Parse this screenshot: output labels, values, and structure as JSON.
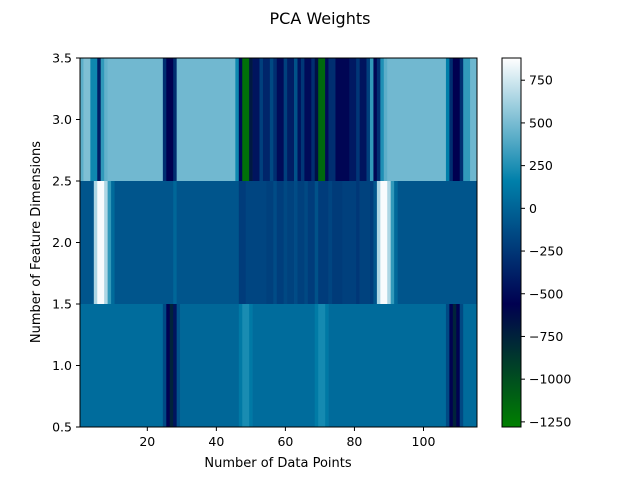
{
  "chart_data": {
    "type": "heatmap",
    "title": "PCA Weights",
    "xlabel": "Number of Data Points",
    "ylabel": "Number of Feature Dimensions",
    "xlim": [
      0.5,
      115.5
    ],
    "ylim": [
      0.5,
      3.5
    ],
    "x_ticks": [
      20,
      40,
      60,
      80,
      100
    ],
    "y_ticks": [
      0.5,
      1.0,
      1.5,
      2.0,
      2.5,
      3.0,
      3.5
    ],
    "x_tick_labels": [
      "20",
      "40",
      "60",
      "80",
      "100"
    ],
    "y_tick_labels": [
      "0.5",
      "1.0",
      "1.5",
      "2.0",
      "2.5",
      "3.0",
      "3.5"
    ],
    "rows": [
      1,
      2,
      3
    ],
    "colormap": "ocean",
    "colorbar": {
      "min": -1280,
      "max": 880,
      "ticks": [
        -1250,
        -1000,
        -750,
        -500,
        -250,
        0,
        250,
        500,
        750
      ],
      "tick_labels": [
        "−1250",
        "−1000",
        "−750",
        "−500",
        "−250",
        "0",
        "250",
        "500",
        "750"
      ]
    },
    "series": [
      {
        "row": 3,
        "segments": [
          {
            "from": 1,
            "to": 1,
            "value": 420
          },
          {
            "from": 2,
            "to": 3,
            "value": 520
          },
          {
            "from": 4,
            "to": 5,
            "value": 200
          },
          {
            "from": 6,
            "to": 6,
            "value": -400
          },
          {
            "from": 7,
            "to": 7,
            "value": 300
          },
          {
            "from": 8,
            "to": 8,
            "value": 440
          },
          {
            "from": 9,
            "to": 24,
            "value": 480
          },
          {
            "from": 25,
            "to": 25,
            "value": -300
          },
          {
            "from": 26,
            "to": 27,
            "value": -560
          },
          {
            "from": 28,
            "to": 28,
            "value": -300
          },
          {
            "from": 29,
            "to": 45,
            "value": 480
          },
          {
            "from": 46,
            "to": 46,
            "value": 200
          },
          {
            "from": 47,
            "to": 47,
            "value": -500
          },
          {
            "from": 48,
            "to": 49,
            "value": -1200
          },
          {
            "from": 50,
            "to": 50,
            "value": -700
          },
          {
            "from": 51,
            "to": 52,
            "value": -450
          },
          {
            "from": 53,
            "to": 53,
            "value": -200
          },
          {
            "from": 54,
            "to": 55,
            "value": -350
          },
          {
            "from": 56,
            "to": 56,
            "value": -150
          },
          {
            "from": 57,
            "to": 57,
            "value": -300
          },
          {
            "from": 58,
            "to": 59,
            "value": -500
          },
          {
            "from": 60,
            "to": 60,
            "value": -200
          },
          {
            "from": 61,
            "to": 62,
            "value": -400
          },
          {
            "from": 63,
            "to": 63,
            "value": -100
          },
          {
            "from": 64,
            "to": 64,
            "value": -450
          },
          {
            "from": 65,
            "to": 65,
            "value": -250
          },
          {
            "from": 66,
            "to": 67,
            "value": -500
          },
          {
            "from": 68,
            "to": 68,
            "value": -300
          },
          {
            "from": 69,
            "to": 69,
            "value": -650
          },
          {
            "from": 70,
            "to": 71,
            "value": -1150
          },
          {
            "from": 72,
            "to": 72,
            "value": -500
          },
          {
            "from": 73,
            "to": 74,
            "value": -300
          },
          {
            "from": 75,
            "to": 78,
            "value": -530
          },
          {
            "from": 79,
            "to": 80,
            "value": -420
          },
          {
            "from": 81,
            "to": 81,
            "value": -250
          },
          {
            "from": 82,
            "to": 83,
            "value": -450
          },
          {
            "from": 84,
            "to": 84,
            "value": -200
          },
          {
            "from": 85,
            "to": 85,
            "value": 300
          },
          {
            "from": 86,
            "to": 86,
            "value": -520
          },
          {
            "from": 87,
            "to": 87,
            "value": -300
          },
          {
            "from": 88,
            "to": 88,
            "value": 250
          },
          {
            "from": 89,
            "to": 89,
            "value": 420
          },
          {
            "from": 90,
            "to": 106,
            "value": 480
          },
          {
            "from": 107,
            "to": 107,
            "value": 150
          },
          {
            "from": 108,
            "to": 108,
            "value": -300
          },
          {
            "from": 109,
            "to": 110,
            "value": -560
          },
          {
            "from": 111,
            "to": 111,
            "value": -300
          },
          {
            "from": 112,
            "to": 113,
            "value": 300
          },
          {
            "from": 114,
            "to": 115,
            "value": 470
          }
        ]
      },
      {
        "row": 2,
        "segments": [
          {
            "from": 1,
            "to": 4,
            "value": -80
          },
          {
            "from": 5,
            "to": 5,
            "value": 650
          },
          {
            "from": 6,
            "to": 7,
            "value": 860
          },
          {
            "from": 8,
            "to": 8,
            "value": 650
          },
          {
            "from": 9,
            "to": 9,
            "value": 300
          },
          {
            "from": 10,
            "to": 10,
            "value": 40
          },
          {
            "from": 11,
            "to": 27,
            "value": -80
          },
          {
            "from": 28,
            "to": 28,
            "value": 20
          },
          {
            "from": 29,
            "to": 46,
            "value": -80
          },
          {
            "from": 47,
            "to": 48,
            "value": -220
          },
          {
            "from": 49,
            "to": 54,
            "value": -170
          },
          {
            "from": 55,
            "to": 56,
            "value": -200
          },
          {
            "from": 57,
            "to": 57,
            "value": -130
          },
          {
            "from": 58,
            "to": 59,
            "value": -210
          },
          {
            "from": 60,
            "to": 60,
            "value": -150
          },
          {
            "from": 61,
            "to": 62,
            "value": -190
          },
          {
            "from": 63,
            "to": 63,
            "value": -130
          },
          {
            "from": 64,
            "to": 65,
            "value": -200
          },
          {
            "from": 66,
            "to": 66,
            "value": -150
          },
          {
            "from": 67,
            "to": 68,
            "value": -220
          },
          {
            "from": 69,
            "to": 69,
            "value": -100
          },
          {
            "from": 70,
            "to": 72,
            "value": -220
          },
          {
            "from": 73,
            "to": 73,
            "value": -170
          },
          {
            "from": 74,
            "to": 76,
            "value": -230
          },
          {
            "from": 77,
            "to": 80,
            "value": -200
          },
          {
            "from": 81,
            "to": 81,
            "value": -250
          },
          {
            "from": 82,
            "to": 84,
            "value": -190
          },
          {
            "from": 85,
            "to": 85,
            "value": -220
          },
          {
            "from": 86,
            "to": 86,
            "value": -80
          },
          {
            "from": 87,
            "to": 87,
            "value": 650
          },
          {
            "from": 88,
            "to": 89,
            "value": 860
          },
          {
            "from": 90,
            "to": 90,
            "value": 650
          },
          {
            "from": 91,
            "to": 91,
            "value": 300
          },
          {
            "from": 92,
            "to": 92,
            "value": 30
          },
          {
            "from": 93,
            "to": 115,
            "value": -80
          }
        ]
      },
      {
        "row": 1,
        "segments": [
          {
            "from": 1,
            "to": 24,
            "value": 50
          },
          {
            "from": 25,
            "to": 25,
            "value": -150
          },
          {
            "from": 26,
            "to": 26,
            "value": -550
          },
          {
            "from": 27,
            "to": 27,
            "value": -760
          },
          {
            "from": 28,
            "to": 28,
            "value": -450
          },
          {
            "from": 29,
            "to": 29,
            "value": -100
          },
          {
            "from": 30,
            "to": 46,
            "value": 20
          },
          {
            "from": 47,
            "to": 47,
            "value": 120
          },
          {
            "from": 48,
            "to": 49,
            "value": 230
          },
          {
            "from": 50,
            "to": 50,
            "value": 120
          },
          {
            "from": 51,
            "to": 68,
            "value": 50
          },
          {
            "from": 69,
            "to": 69,
            "value": 130
          },
          {
            "from": 70,
            "to": 71,
            "value": 220
          },
          {
            "from": 72,
            "to": 72,
            "value": 120
          },
          {
            "from": 73,
            "to": 106,
            "value": 40
          },
          {
            "from": 107,
            "to": 107,
            "value": -150
          },
          {
            "from": 108,
            "to": 108,
            "value": -550
          },
          {
            "from": 109,
            "to": 109,
            "value": -760
          },
          {
            "from": 110,
            "to": 110,
            "value": -550
          },
          {
            "from": 111,
            "to": 111,
            "value": -150
          },
          {
            "from": 112,
            "to": 115,
            "value": 40
          }
        ]
      }
    ]
  }
}
